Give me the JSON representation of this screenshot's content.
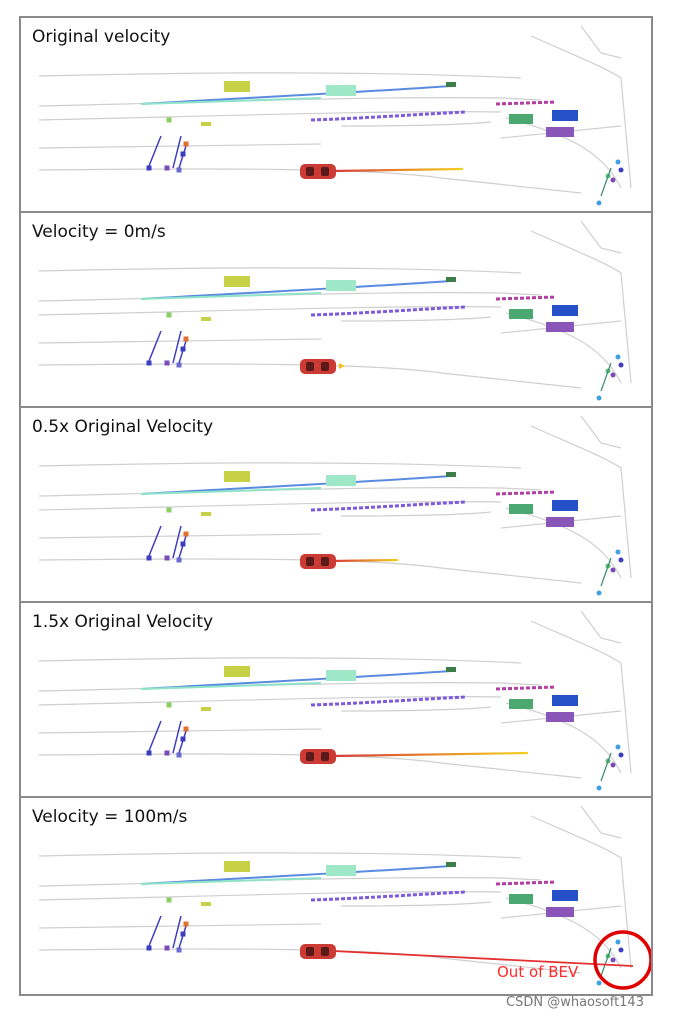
{
  "panels": [
    {
      "label": "Original velocity",
      "trajectory_scale": 1.0
    },
    {
      "label": "Velocity = 0m/s",
      "trajectory_scale": 0.0
    },
    {
      "label": "0.5x Original Velocity",
      "trajectory_scale": 0.5
    },
    {
      "label": "1.5x Original Velocity",
      "trajectory_scale": 1.5
    },
    {
      "label": "Velocity = 100m/s",
      "trajectory_scale": "out-of-bev"
    }
  ],
  "annotation": "Out of BEV",
  "watermark": "CSDN @whaosoft143",
  "colors": {
    "ego_vehicle": "#cc3b33",
    "highlight_circle": "#e00000",
    "annotation_text": "#ff2a2a",
    "frame": "#8a8a8a",
    "road_lines": "#cfcfcf"
  },
  "icons": [
    "ego-car-icon",
    "trajectory-icon",
    "highlight-circle-icon"
  ]
}
